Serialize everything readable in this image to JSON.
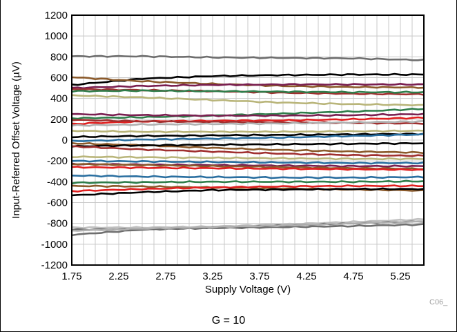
{
  "chart_data": {
    "type": "line",
    "title": "",
    "xlabel": "Supply Voltage (V)",
    "ylabel": "Input-Referred Offset Voltage (µV)",
    "xlim": [
      1.75,
      5.5
    ],
    "ylim": [
      -1200,
      1200
    ],
    "xticks": [
      "1.75",
      "2.25",
      "2.75",
      "3.25",
      "3.75",
      "4.25",
      "4.75",
      "5.25"
    ],
    "yticks": [
      "1200",
      "1000",
      "800",
      "600",
      "400",
      "200",
      "0",
      "-200",
      "-400",
      "-600",
      "-800",
      "-1000",
      "-1200"
    ],
    "grid": true,
    "figure_code": "C06_",
    "caption": "G = 10",
    "x": [
      1.75,
      2.5,
      3.25,
      4.0,
      4.75,
      5.5
    ],
    "series": [
      {
        "color": "#6e6e6e",
        "values": [
          805,
          805,
          795,
          790,
          785,
          768
        ]
      },
      {
        "color": "#000000",
        "values": [
          530,
          590,
          615,
          625,
          630,
          630
        ]
      },
      {
        "color": "#8b5a2b",
        "values": [
          605,
          565,
          540,
          520,
          510,
          505
        ]
      },
      {
        "color": "#7a1f50",
        "values": [
          500,
          520,
          530,
          535,
          535,
          535
        ]
      },
      {
        "color": "#a03030",
        "values": [
          490,
          480,
          470,
          455,
          445,
          440
        ]
      },
      {
        "color": "#2f7d4a",
        "values": [
          470,
          475,
          470,
          465,
          460,
          460
        ]
      },
      {
        "color": "#b9b57a",
        "values": [
          430,
          410,
          385,
          360,
          345,
          335
        ]
      },
      {
        "color": "#2f7d4a",
        "values": [
          210,
          220,
          235,
          255,
          275,
          300
        ]
      },
      {
        "color": "#7a1f50",
        "values": [
          250,
          240,
          235,
          235,
          240,
          250
        ]
      },
      {
        "color": "#e02020",
        "values": [
          155,
          180,
          185,
          190,
          200,
          215
        ]
      },
      {
        "color": "#a03030",
        "values": [
          195,
          180,
          175,
          170,
          165,
          160
        ]
      },
      {
        "color": "#b0b0b0",
        "values": [
          140,
          150,
          155,
          160,
          170,
          180
        ]
      },
      {
        "color": "#b9b57a",
        "values": [
          90,
          80,
          80,
          80,
          85,
          90
        ]
      },
      {
        "color": "#000000",
        "values": [
          30,
          40,
          45,
          50,
          55,
          60
        ]
      },
      {
        "color": "#2a6fa0",
        "values": [
          -10,
          5,
          15,
          25,
          40,
          55
        ]
      },
      {
        "color": "#8b5a2b",
        "values": [
          -30,
          -50,
          -75,
          -95,
          -110,
          -120
        ]
      },
      {
        "color": "#000000",
        "values": [
          -60,
          -50,
          -45,
          -40,
          -35,
          -30
        ]
      },
      {
        "color": "#a03030",
        "values": [
          -60,
          -90,
          -110,
          -130,
          -145,
          -150
        ]
      },
      {
        "color": "#b9b57a",
        "values": [
          -160,
          -165,
          -170,
          -175,
          -180,
          -180
        ]
      },
      {
        "color": "#2a6fa0",
        "values": [
          -200,
          -205,
          -210,
          -215,
          -220,
          -220
        ]
      },
      {
        "color": "#7a1f50",
        "values": [
          -230,
          -235,
          -240,
          -245,
          -250,
          -250
        ]
      },
      {
        "color": "#8b5a2b",
        "values": [
          -230,
          -240,
          -250,
          -260,
          -270,
          -275
        ]
      },
      {
        "color": "#e02020",
        "values": [
          -260,
          -265,
          -270,
          -275,
          -280,
          -285
        ]
      },
      {
        "color": "#2a6fa0",
        "values": [
          -340,
          -350,
          -355,
          -360,
          -360,
          -355
        ]
      },
      {
        "color": "#2f7d4a",
        "values": [
          -410,
          -405,
          -400,
          -400,
          -400,
          -395
        ]
      },
      {
        "color": "#8b5a2b",
        "values": [
          -440,
          -445,
          -455,
          -465,
          -475,
          -485
        ]
      },
      {
        "color": "#e02020",
        "values": [
          -490,
          -470,
          -455,
          -445,
          -440,
          -440
        ]
      },
      {
        "color": "#000000",
        "values": [
          -530,
          -500,
          -480,
          -475,
          -470,
          -470
        ]
      },
      {
        "color": "#c0c0c0",
        "values": [
          -840,
          -840,
          -830,
          -810,
          -785,
          -760
        ]
      },
      {
        "color": "#6e6e6e",
        "values": [
          -910,
          -860,
          -840,
          -820,
          -800,
          -780
        ]
      },
      {
        "color": "#6e6e6e",
        "values": [
          -860,
          -855,
          -845,
          -835,
          -825,
          -810
        ]
      },
      {
        "color": "#b0b0b0",
        "values": [
          -870,
          -850,
          -835,
          -820,
          -800,
          -780
        ]
      }
    ]
  }
}
